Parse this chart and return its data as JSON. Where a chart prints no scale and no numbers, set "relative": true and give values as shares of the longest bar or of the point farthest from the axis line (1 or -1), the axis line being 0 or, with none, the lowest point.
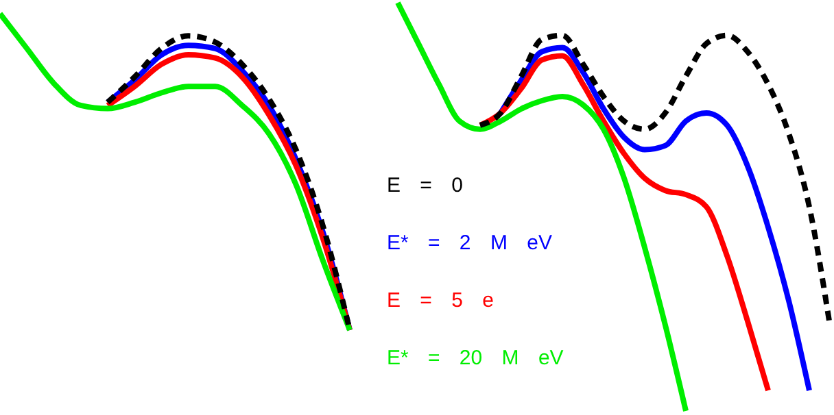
{
  "chart_data": [
    {
      "type": "line",
      "relative": true,
      "categories": [
        null,
        null,
        null,
        null,
        null,
        null,
        null,
        null,
        null,
        null,
        null,
        null,
        null,
        null
      ],
      "legend": false,
      "series": [
        {
          "color": "#000000",
          "line_style": "dashed",
          "values": [
            null,
            null,
            null,
            null,
            0.72,
            0.8,
            0.89,
            0.93,
            0.91,
            0.84,
            0.73,
            0.57,
            0.33,
            0
          ]
        },
        {
          "color": "#0000ff",
          "values": [
            null,
            null,
            null,
            null,
            0.72,
            0.79,
            0.87,
            0.9,
            0.89,
            0.82,
            0.71,
            0.54,
            0.31,
            0
          ]
        },
        {
          "color": "#ff0000",
          "values": [
            null,
            null,
            null,
            null,
            0.71,
            0.77,
            0.84,
            0.87,
            0.86,
            0.8,
            0.68,
            0.52,
            0.29,
            0
          ]
        },
        {
          "color": "#00ee00",
          "values": [
            1,
            0.89,
            0.78,
            0.71,
            0.7,
            0.72,
            0.75,
            0.77,
            0.77,
            0.71,
            0.62,
            0.46,
            0.22,
            0
          ]
        }
      ]
    },
    {
      "type": "line",
      "relative": true,
      "categories": [
        null,
        null,
        null,
        null,
        null,
        null,
        null,
        null,
        null,
        null,
        null,
        null,
        null,
        null,
        null,
        null,
        null,
        null,
        null,
        null,
        null,
        null
      ],
      "legend": "bottom left",
      "series": [
        {
          "name": "E = 0",
          "color": "#000000",
          "line_style": "dashed",
          "values": [
            null,
            null,
            null,
            null,
            0.7,
            0.73,
            0.82,
            0.91,
            0.92,
            0.85,
            0.77,
            0.71,
            0.69,
            0.73,
            0.82,
            0.9,
            0.92,
            0.88,
            0.8,
            0.68,
            0.5,
            0.21
          ]
        },
        {
          "name": "E* = 2 M eV",
          "color": "#0000ff",
          "values": [
            null,
            null,
            null,
            null,
            null,
            0.73,
            0.81,
            0.88,
            0.89,
            0.83,
            0.74,
            0.67,
            0.64,
            0.65,
            0.71,
            0.73,
            0.7,
            0.6,
            0.45,
            0.27,
            0.05,
            null
          ]
        },
        {
          "name": "E = 5 e",
          "color": "#ff0000",
          "values": [
            null,
            null,
            null,
            null,
            0.7,
            0.73,
            0.79,
            0.86,
            0.87,
            0.8,
            0.71,
            0.63,
            0.57,
            0.54,
            0.53,
            0.5,
            0.38,
            0.22,
            0.05,
            null,
            null,
            null
          ]
        },
        {
          "name": "E* = 20 M eV",
          "color": "#00ee00",
          "values": [
            1,
            0.9,
            0.8,
            0.71,
            0.69,
            0.71,
            0.74,
            0.76,
            0.77,
            0.75,
            0.69,
            0.57,
            0.4,
            0.21,
            0,
            null,
            null,
            null,
            null,
            null,
            null,
            null
          ]
        }
      ]
    }
  ]
}
